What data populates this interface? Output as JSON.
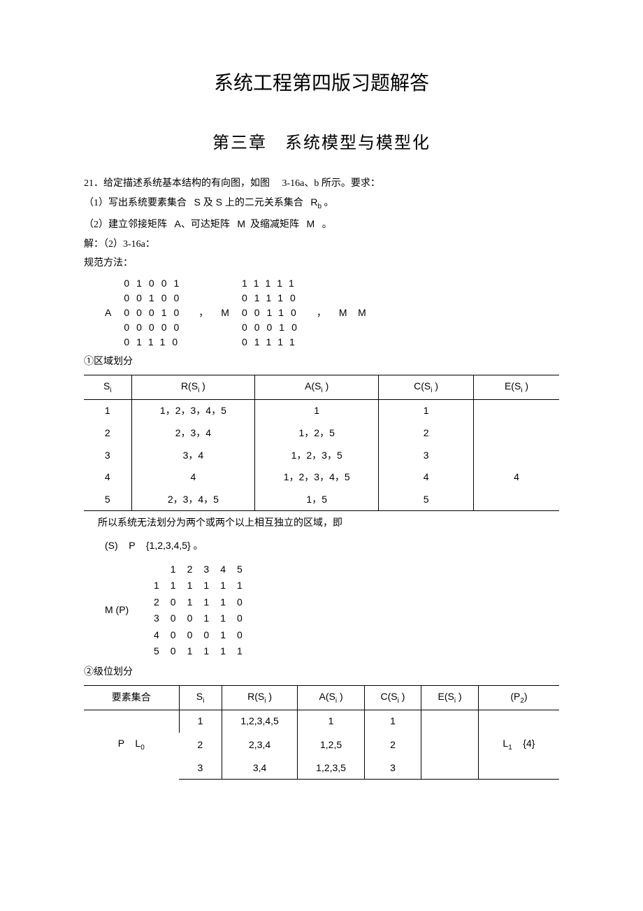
{
  "title_main": "系统工程第四版习题解答",
  "title_chapter": "第三章 系统模型与模型化",
  "p1_a": "21．给定描述系统基本结构的有向图，如图",
  "p1_b": "3-16a、b 所示。要求：",
  "p2_a": "（1）写出系统要素集合",
  "p2_b": "S 及 S 上的二元关系集合",
  "p2_c": "R",
  "p2_sub": "b",
  "p2_d": "。",
  "p3_a": "（2）建立邻接矩阵",
  "p3_b": "A、可达矩阵",
  "p3_c": "M",
  "p3_d": "及缩减矩阵",
  "p3_e": "M",
  "p3_f": "。",
  "p4": "解：（2）3-16a：",
  "p5": "规范方法：",
  "matA_label": "A",
  "matA": {
    "rows": [
      [
        "0",
        "1",
        "0",
        "0",
        "1"
      ],
      [
        "0",
        "0",
        "1",
        "0",
        "0"
      ],
      [
        "0",
        "0",
        "0",
        "1",
        "0"
      ],
      [
        "0",
        "0",
        "0",
        "0",
        "0"
      ],
      [
        "0",
        "1",
        "1",
        "1",
        "0"
      ]
    ]
  },
  "matM_label": "M",
  "matM": {
    "rows": [
      [
        "1",
        "1",
        "1",
        "1",
        "1"
      ],
      [
        "0",
        "1",
        "1",
        "1",
        "0"
      ],
      [
        "0",
        "0",
        "1",
        "1",
        "0"
      ],
      [
        "0",
        "0",
        "0",
        "1",
        "0"
      ],
      [
        "0",
        "1",
        "1",
        "1",
        "1"
      ]
    ]
  },
  "comma": "，",
  "mm_eq": "M    M",
  "sec1": "①区域划分",
  "table1": {
    "headers": [
      "S_i",
      "R(S_i )",
      "A(S_i )",
      "C(S_i )",
      "E(S_i )"
    ],
    "rows": [
      [
        "1",
        "1，2，3，4，5",
        "1",
        "1",
        ""
      ],
      [
        "2",
        "2，3，4",
        "1，2，5",
        "2",
        ""
      ],
      [
        "3",
        "3，4",
        "1，2，3，5",
        "3",
        ""
      ],
      [
        "4",
        "4",
        "1，2，3，4，5",
        "4",
        "4"
      ],
      [
        "5",
        "2，3，4，5",
        "1，5",
        "5",
        ""
      ]
    ]
  },
  "p6": "所以系统无法划分为两个或两个以上相互独立的区域，即",
  "p7": "(S)    P    {1,2,3,4,5} 。",
  "matMP_label": "M (P)",
  "matMP": {
    "col_headers": [
      "1",
      "2",
      "3",
      "4",
      "5"
    ],
    "rows": [
      [
        "1",
        "1",
        "1",
        "1",
        "1",
        "1"
      ],
      [
        "2",
        "0",
        "1",
        "1",
        "1",
        "0"
      ],
      [
        "3",
        "0",
        "0",
        "1",
        "1",
        "0"
      ],
      [
        "4",
        "0",
        "0",
        "0",
        "1",
        "0"
      ],
      [
        "5",
        "0",
        "1",
        "1",
        "1",
        "1"
      ]
    ]
  },
  "sec2": "②级位划分",
  "table2": {
    "headers": [
      "要素集合",
      "S_i",
      "R(S_i )",
      "A(S_i )",
      "C(S_i )",
      "E(S_i )",
      "(P_2)"
    ],
    "group_label": "P    L_0",
    "rows": [
      [
        "1",
        "1,2,3,4,5",
        "1",
        "1",
        "",
        ""
      ],
      [
        "2",
        "2,3,4",
        "1,2,5",
        "2",
        "",
        "L_1    {4}"
      ],
      [
        "3",
        "3,4",
        "1,2,3,5",
        "3",
        "",
        ""
      ]
    ]
  },
  "style": {
    "page_bg": "#ffffff",
    "text_color": "#000000",
    "title_fontsize": 28,
    "chapter_fontsize": 24,
    "body_fontsize": 14,
    "border_color": "#000000"
  }
}
